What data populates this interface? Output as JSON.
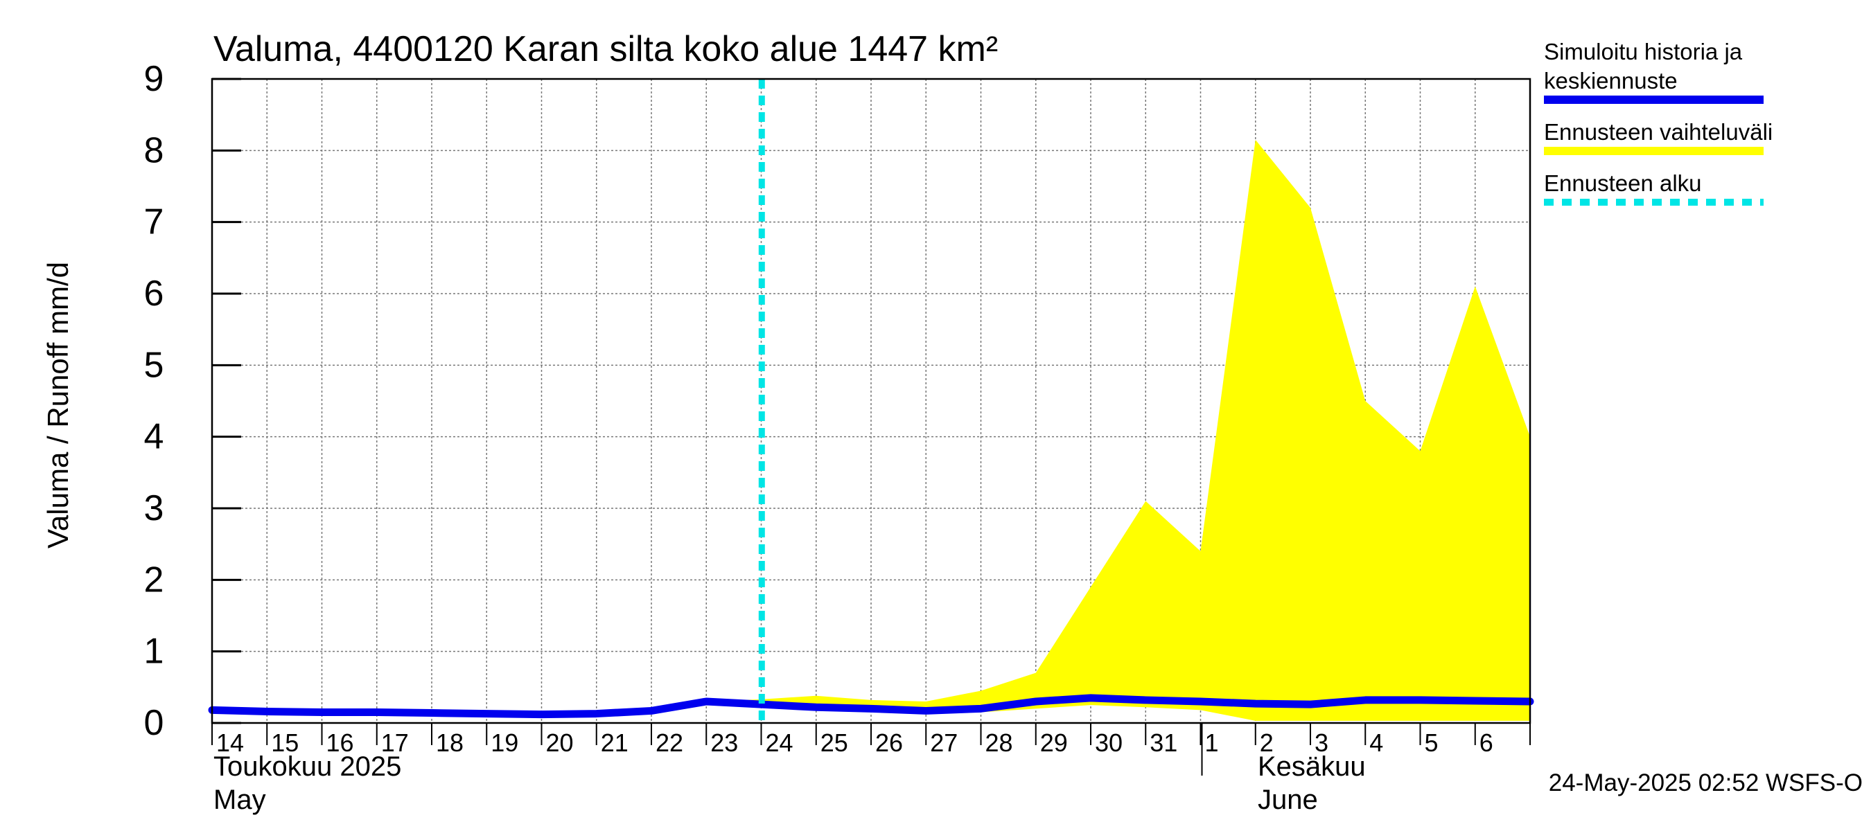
{
  "chart_data": {
    "type": "area",
    "title": "Valuma, 4400120 Karan silta koko alue 1447 km²",
    "ylabel": "Valuma / Runoff    mm/d",
    "ylim": [
      0,
      9
    ],
    "yticks": [
      "0",
      "1",
      "2",
      "3",
      "4",
      "5",
      "6",
      "7",
      "8",
      "9"
    ],
    "x_dates": [
      "14",
      "15",
      "16",
      "17",
      "18",
      "19",
      "20",
      "21",
      "22",
      "23",
      "24",
      "25",
      "26",
      "27",
      "28",
      "29",
      "30",
      "31",
      "1",
      "2",
      "3",
      "4",
      "5",
      "6"
    ],
    "x_range_days": [
      0,
      24
    ],
    "month_labels": {
      "may_fi": "Toukokuu  2025",
      "may_en": "May",
      "june_fi": "Kesäkuu",
      "june_en": "June"
    },
    "forecast_start_day": 10,
    "series": [
      {
        "name": "Simuloitu historia ja keskiennuste",
        "color": "#0000ee",
        "x": [
          0,
          1,
          2,
          3,
          4,
          5,
          6,
          7,
          8,
          9,
          10,
          11,
          12,
          13,
          14,
          15,
          16,
          17,
          18,
          19,
          20,
          21,
          22,
          23,
          24
        ],
        "values": [
          0.18,
          0.16,
          0.15,
          0.15,
          0.14,
          0.13,
          0.12,
          0.13,
          0.17,
          0.3,
          0.26,
          0.22,
          0.2,
          0.17,
          0.2,
          0.3,
          0.35,
          0.32,
          0.3,
          0.27,
          0.26,
          0.32,
          0.32,
          0.31,
          0.3
        ]
      },
      {
        "name": "Ennusteen vaihteluväli",
        "color": "#ffff00",
        "x": [
          9,
          10,
          11,
          12,
          13,
          14,
          15,
          16,
          17,
          18,
          19,
          20,
          21,
          22,
          23,
          24
        ],
        "upper": [
          0.3,
          0.33,
          0.38,
          0.32,
          0.3,
          0.45,
          0.7,
          1.9,
          3.1,
          2.4,
          8.15,
          7.2,
          4.5,
          3.8,
          6.1,
          4.0
        ],
        "lower": [
          0.3,
          0.25,
          0.2,
          0.17,
          0.15,
          0.15,
          0.2,
          0.25,
          0.22,
          0.18,
          0.03,
          0.03,
          0.03,
          0.03,
          0.03,
          0.03
        ]
      }
    ],
    "legend": [
      {
        "label_line1": "Simuloitu historia ja",
        "label_line2": "keskiennuste",
        "color": "#0000ee",
        "style": "solid"
      },
      {
        "label_line1": "Ennusteen vaihteluväli",
        "color": "#ffff00",
        "style": "solid"
      },
      {
        "label_line1": "Ennusteen alku",
        "color": "#00e5e5",
        "style": "dashed"
      }
    ],
    "footer": "24-May-2025 02:52 WSFS-O"
  }
}
